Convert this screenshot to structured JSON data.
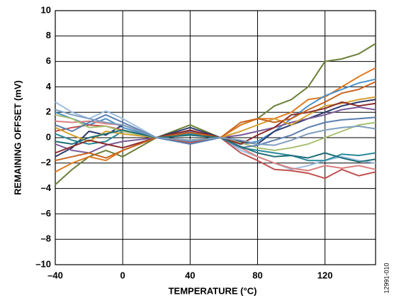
{
  "chart_data": {
    "type": "line",
    "xlabel": "TEMPERATURE (°C)",
    "ylabel": "REMAINING OFFSET (mV)",
    "side_note": "12991-010",
    "x": [
      -40,
      -30,
      -20,
      -10,
      0,
      20,
      40,
      58,
      70,
      80,
      90,
      100,
      110,
      120,
      130,
      140,
      150
    ],
    "xlim": [
      -40,
      150
    ],
    "xticks": [
      {
        "value": -40,
        "label": "–40"
      },
      0,
      40,
      80,
      120
    ],
    "ylim": [
      -10,
      10
    ],
    "yticks": [
      {
        "value": -10,
        "label": "–10"
      },
      {
        "value": -8,
        "label": "–8"
      },
      {
        "value": -6,
        "label": "–6"
      },
      {
        "value": -4,
        "label": "–4"
      },
      {
        "value": -2,
        "label": "–2"
      },
      0,
      2,
      4,
      6,
      8,
      10
    ],
    "grid": true,
    "series": [
      {
        "color": "#6b7f3a",
        "values": [
          -3.7,
          -2.5,
          -1.5,
          -1,
          -1.5,
          0,
          1,
          0,
          1,
          1.5,
          2.5,
          3,
          4,
          6,
          6.2,
          6.6,
          7.4
        ]
      },
      {
        "color": "#e07b20",
        "values": [
          -2.7,
          -2,
          -1.5,
          -1.8,
          -1,
          0,
          0.5,
          0,
          1,
          1.5,
          1.5,
          2,
          3,
          3.2,
          4,
          4.8,
          5.5
        ]
      },
      {
        "color": "#4a90c8",
        "values": [
          2,
          1.5,
          1,
          1.5,
          0.8,
          0,
          -0.3,
          0,
          -0.5,
          -0.3,
          0.5,
          1.5,
          2.5,
          3.3,
          3.8,
          4.3,
          4.6
        ]
      },
      {
        "color": "#9dbde0",
        "values": [
          2.8,
          2,
          1.5,
          2.1,
          1.5,
          0,
          -0.4,
          0,
          -1,
          -1.5,
          -2,
          -2.5,
          -2.2,
          -1.8,
          -1.5,
          -1.8,
          -2
        ]
      },
      {
        "color": "#2b3a6b",
        "values": [
          -1.5,
          -0.8,
          0.5,
          0.2,
          1,
          0,
          0.8,
          0,
          -0.3,
          -0.5,
          0.5,
          1,
          1.5,
          2,
          2.5,
          2.8,
          3
        ]
      },
      {
        "color": "#c0504d",
        "values": [
          0.5,
          0.8,
          1,
          0.9,
          0.6,
          0,
          -0.4,
          0,
          -1.2,
          -1.8,
          -2.5,
          -2.6,
          -2.8,
          -3.2,
          -2.5,
          -3,
          -2.7
        ]
      },
      {
        "color": "#d98080",
        "values": [
          1.3,
          1.2,
          1.3,
          1.1,
          1,
          0,
          0.2,
          0,
          -0.8,
          -1.5,
          -2,
          -2.4,
          -2.6,
          -2.2,
          -2.4,
          -2.2,
          -2.5
        ]
      },
      {
        "color": "#2a8a9a",
        "values": [
          0.3,
          -0.2,
          -0.5,
          -0.3,
          0.5,
          0,
          0.3,
          0,
          -0.8,
          -1,
          -1.2,
          -1.4,
          -1.8,
          -1.8,
          -1.3,
          -1.4,
          -1.2
        ]
      },
      {
        "color": "#7a5a9a",
        "values": [
          -0.5,
          -1,
          -1.2,
          -0.6,
          -0.3,
          0,
          0.5,
          0,
          0.2,
          0.5,
          0.8,
          1.2,
          1.5,
          1.8,
          2.2,
          2.4,
          2.2
        ]
      },
      {
        "color": "#d4a030",
        "values": [
          0.8,
          0.2,
          -0.3,
          0.5,
          0.3,
          0,
          -0.2,
          0,
          0.5,
          1,
          1.5,
          1,
          1.8,
          2.5,
          2.7,
          3,
          3.2
        ]
      },
      {
        "color": "#a8c070",
        "values": [
          1.8,
          1.5,
          0.8,
          0.9,
          0.5,
          0,
          -0.2,
          0,
          -0.4,
          -0.8,
          -1,
          -0.8,
          -0.5,
          0,
          0.5,
          1,
          1.2
        ]
      },
      {
        "color": "#8b2c2c",
        "values": [
          -1.2,
          -0.7,
          -0.2,
          -0.5,
          -0.8,
          0,
          0.6,
          0,
          -0.5,
          0.2,
          0.8,
          1.8,
          2,
          2.3,
          2.8,
          2.5,
          2.7
        ]
      },
      {
        "color": "#c8641e",
        "values": [
          -1.8,
          -1.5,
          -1.2,
          -1.6,
          -1,
          0,
          0.4,
          0,
          1.2,
          1.5,
          1.2,
          1.5,
          2.2,
          2.8,
          3.5,
          3.8,
          4.4
        ]
      },
      {
        "color": "#5b7fb0",
        "values": [
          1,
          0.5,
          1.2,
          1.8,
          1.2,
          0,
          -0.5,
          0,
          -0.8,
          -0.6,
          -0.2,
          0.2,
          0.8,
          1.2,
          1.4,
          1.5,
          1.6
        ]
      },
      {
        "color": "#1f6f78",
        "values": [
          -0.3,
          -0.5,
          0,
          0.3,
          0.6,
          0,
          0.2,
          0,
          -0.7,
          -1.2,
          -1.5,
          -1.4,
          -1.6,
          -1.2,
          -1.6,
          -1.9,
          -1.7
        ]
      },
      {
        "color": "#7f9fbf",
        "values": [
          2.2,
          1.8,
          1.5,
          1.2,
          1,
          0,
          -0.2,
          0,
          -0.2,
          -0.5,
          -0.6,
          -0.2,
          0.3,
          0.6,
          0.8,
          0.9,
          0.7
        ]
      }
    ]
  }
}
